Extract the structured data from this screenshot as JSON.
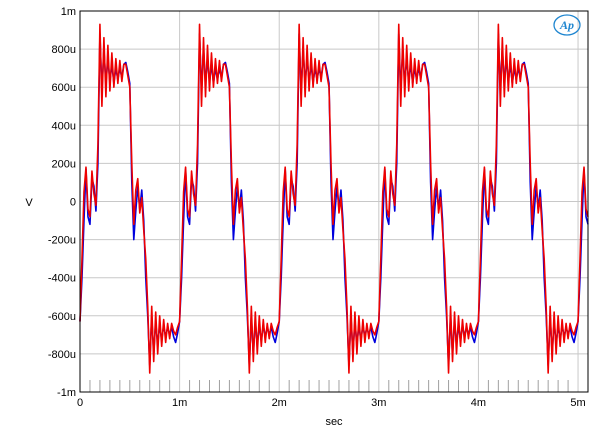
{
  "chart_data": {
    "type": "line",
    "xlabel": "sec",
    "ylabel": "V",
    "xlim": [
      0,
      0.0051
    ],
    "ylim": [
      -0.001,
      0.001
    ],
    "x_ticks": [
      {
        "value": 0,
        "label": "0"
      },
      {
        "value": 0.001,
        "label": "1m"
      },
      {
        "value": 0.002,
        "label": "2m"
      },
      {
        "value": 0.003,
        "label": "3m"
      },
      {
        "value": 0.004,
        "label": "4m"
      },
      {
        "value": 0.005,
        "label": "5m"
      }
    ],
    "y_ticks": [
      {
        "value": 0.001,
        "label": "1m"
      },
      {
        "value": 0.0008,
        "label": "800u"
      },
      {
        "value": 0.0006,
        "label": "600u"
      },
      {
        "value": 0.0004,
        "label": "400u"
      },
      {
        "value": 0.0002,
        "label": "200u"
      },
      {
        "value": 0,
        "label": "0"
      },
      {
        "value": -0.0002,
        "label": "-200u"
      },
      {
        "value": -0.0004,
        "label": "-400u"
      },
      {
        "value": -0.0006,
        "label": "-600u"
      },
      {
        "value": -0.0008,
        "label": "-800u"
      },
      {
        "value": -0.001,
        "label": "-1m"
      }
    ],
    "grid": true,
    "period": 0.001,
    "series": [
      {
        "color": "#0000dd",
        "cycle": [
          [
            0.0,
            -0.00063
          ],
          [
            2e-05,
            -0.0004
          ],
          [
            4e-05,
            -0.0001
          ],
          [
            6e-05,
            0.00017
          ],
          [
            8e-05,
            -8e-05
          ],
          [
            0.0001,
            -0.00012
          ],
          [
            0.00012,
            0.00012
          ],
          [
            0.00014,
            8e-05
          ],
          [
            0.00016,
            -5e-05
          ],
          [
            0.00018,
            0.0002
          ],
          [
            0.0002,
            0.00088
          ],
          [
            0.00022,
            0.00058
          ],
          [
            0.00024,
            0.0008
          ],
          [
            0.00026,
            0.00062
          ],
          [
            0.00028,
            0.00075
          ],
          [
            0.0003,
            0.00063
          ],
          [
            0.00032,
            0.00072
          ],
          [
            0.00034,
            0.00062
          ],
          [
            0.00036,
            0.0007
          ],
          [
            0.00038,
            0.00064
          ],
          [
            0.0004,
            0.0007
          ],
          [
            0.00042,
            0.00065
          ],
          [
            0.00044,
            0.00072
          ],
          [
            0.00046,
            0.00073
          ],
          [
            0.00048,
            0.00068
          ],
          [
            0.0005,
            0.00062
          ],
          [
            0.00052,
            0.0001
          ],
          [
            0.00054,
            -0.0002
          ],
          [
            0.00056,
            -5e-05
          ],
          [
            0.00058,
            8e-05
          ],
          [
            0.0006,
            -4e-05
          ],
          [
            0.00062,
            6e-05
          ],
          [
            0.00064,
            -0.0001
          ],
          [
            0.00066,
            -0.0004
          ],
          [
            0.00068,
            -0.0006
          ],
          [
            0.0007,
            -0.00086
          ],
          [
            0.00072,
            -0.0006
          ],
          [
            0.00074,
            -0.0008
          ],
          [
            0.00076,
            -0.00063
          ],
          [
            0.00078,
            -0.00075
          ],
          [
            0.0008,
            -0.00065
          ],
          [
            0.00082,
            -0.00073
          ],
          [
            0.00084,
            -0.00065
          ],
          [
            0.00086,
            -0.00071
          ],
          [
            0.00088,
            -0.00066
          ],
          [
            0.0009,
            -0.0007
          ],
          [
            0.00092,
            -0.00066
          ],
          [
            0.00094,
            -0.00071
          ],
          [
            0.00096,
            -0.00074
          ],
          [
            0.00098,
            -0.00069
          ],
          [
            0.001,
            -0.00063
          ]
        ]
      },
      {
        "color": "#ee0000",
        "cycle": [
          [
            0.0,
            -0.00063
          ],
          [
            2e-05,
            -0.0003
          ],
          [
            4e-05,
            5e-05
          ],
          [
            6e-05,
            0.00018
          ],
          [
            8e-05,
            -4e-05
          ],
          [
            0.0001,
            -8e-05
          ],
          [
            0.00012,
            0.00016
          ],
          [
            0.00014,
            4e-05
          ],
          [
            0.00016,
            -2e-05
          ],
          [
            0.00018,
            0.0003
          ],
          [
            0.0002,
            0.00093
          ],
          [
            0.00022,
            0.0005
          ],
          [
            0.00024,
            0.00086
          ],
          [
            0.00026,
            0.00055
          ],
          [
            0.00028,
            0.00082
          ],
          [
            0.0003,
            0.00058
          ],
          [
            0.00032,
            0.00078
          ],
          [
            0.00034,
            0.0006
          ],
          [
            0.00036,
            0.00075
          ],
          [
            0.00038,
            0.00062
          ],
          [
            0.0004,
            0.00074
          ],
          [
            0.00042,
            0.00063
          ],
          [
            0.00044,
            0.00072
          ],
          [
            0.00046,
            0.00072
          ],
          [
            0.00048,
            0.00066
          ],
          [
            0.0005,
            0.0006
          ],
          [
            0.00052,
            0.0002
          ],
          [
            0.00054,
            -0.00012
          ],
          [
            0.00056,
            6e-05
          ],
          [
            0.00058,
            0.00012
          ],
          [
            0.0006,
            -6e-05
          ],
          [
            0.00062,
            2e-05
          ],
          [
            0.00064,
            -0.00015
          ],
          [
            0.00066,
            -0.0003
          ],
          [
            0.00068,
            -0.00055
          ],
          [
            0.0007,
            -0.0009
          ],
          [
            0.00072,
            -0.00055
          ],
          [
            0.00074,
            -0.00084
          ],
          [
            0.00076,
            -0.00058
          ],
          [
            0.00078,
            -0.0008
          ],
          [
            0.0008,
            -0.0006
          ],
          [
            0.00082,
            -0.00076
          ],
          [
            0.00084,
            -0.00062
          ],
          [
            0.00086,
            -0.00074
          ],
          [
            0.00088,
            -0.00064
          ],
          [
            0.0009,
            -0.00072
          ],
          [
            0.00092,
            -0.00064
          ],
          [
            0.00094,
            -0.00068
          ],
          [
            0.00096,
            -0.0007
          ],
          [
            0.00098,
            -0.00066
          ],
          [
            0.001,
            -0.00063
          ]
        ]
      }
    ]
  },
  "logo": {
    "text": "Ap",
    "color": "#1f86d0"
  }
}
